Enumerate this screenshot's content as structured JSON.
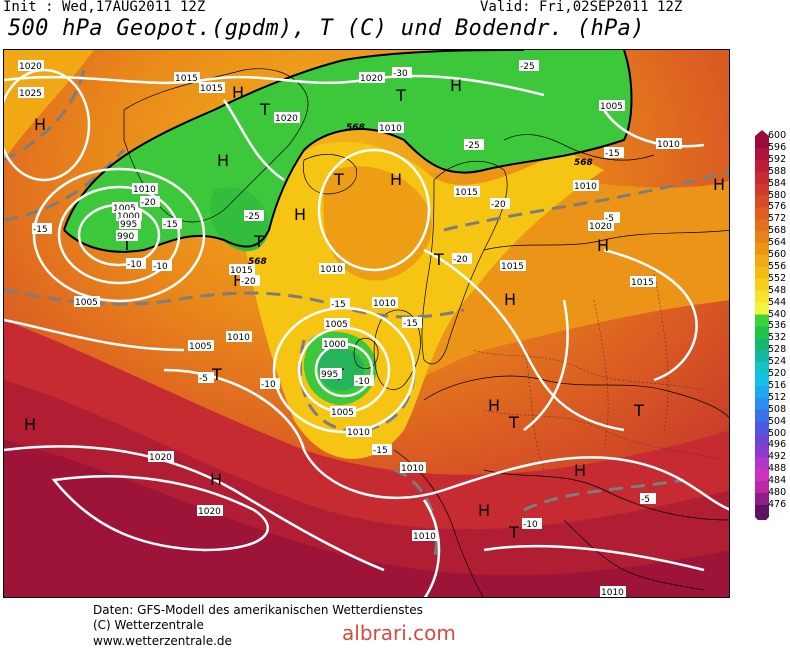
{
  "header": {
    "init": "Init : Wed,17AUG2011 12Z",
    "valid": "Valid: Fri,02SEP2011 12Z",
    "title": "500 hPa Geopot.(gpdm), T (C) und Bodendr. (hPa)"
  },
  "map": {
    "pressure_centers": [
      {
        "type": "H",
        "lon_lat": "Atlantic W"
      },
      {
        "type": "H",
        "lon_lat": "Greenland"
      },
      {
        "type": "T",
        "lon_lat": "Iceland"
      },
      {
        "type": "T",
        "lon_lat": "N Scandinavia"
      },
      {
        "type": "H",
        "lon_lat": "Norwegian Sea"
      },
      {
        "type": "T",
        "lon_lat": "W Atlantic low"
      },
      {
        "type": "T",
        "lon_lat": "British Isles low"
      },
      {
        "type": "H",
        "lon_lat": "Azores"
      }
    ],
    "isobar_labels": [
      "1020",
      "1025",
      "1015",
      "1015",
      "1020",
      "1010",
      "1005",
      "1000",
      "995",
      "990",
      "1005",
      "1010",
      "1015",
      "1020",
      "1005",
      "1010",
      "1010",
      "1005",
      "1000",
      "995",
      "1005",
      "1010",
      "1010",
      "1015",
      "1010",
      "1015",
      "1020",
      "1010",
      "1010",
      "1020",
      "1005",
      "1010",
      "1015",
      "1020",
      "1010"
    ],
    "temp_labels": [
      "-30",
      "-25",
      "-20",
      "-25",
      "-20",
      "-15",
      "-10",
      "-15",
      "-20",
      "-25",
      "-15",
      "-5",
      "-10",
      "-15",
      "-20",
      "-15",
      "-10",
      "-5",
      "-15",
      "-10",
      "-5",
      "-10"
    ],
    "geopotential_labels": [
      "568",
      "568",
      "568",
      "568"
    ]
  },
  "colorbar": {
    "labels": [
      "600",
      "596",
      "592",
      "588",
      "584",
      "580",
      "576",
      "572",
      "568",
      "564",
      "560",
      "556",
      "552",
      "548",
      "544",
      "540",
      "536",
      "532",
      "528",
      "524",
      "520",
      "516",
      "512",
      "508",
      "504",
      "500",
      "496",
      "492",
      "488",
      "484",
      "480",
      "476"
    ],
    "colors": [
      "#9a0b3a",
      "#b0123a",
      "#bf1d36",
      "#c92a31",
      "#d1392b",
      "#d84b25",
      "#de5d1f",
      "#e3701b",
      "#e98317",
      "#ee9614",
      "#f2a912",
      "#f6bc14",
      "#f9cf1d",
      "#f8e22c",
      "#eef73a",
      "#3ed23a",
      "#1fc44a",
      "#18b66d",
      "#14b8a0",
      "#14c3c8",
      "#12c0e8",
      "#1ea8f0",
      "#2b8ef0",
      "#3a72ea",
      "#4f58e2",
      "#6a46d8",
      "#8d3ad0",
      "#b037c8",
      "#ce33c0",
      "#bb27a5",
      "#8f1f86",
      "#5e1466"
    ]
  },
  "footer": {
    "line1": "Daten: GFS-Modell des amerikanischen Wetterdienstes",
    "line2": "(C) Wetterzentrale",
    "line3": "www.wetterzentrale.de"
  },
  "watermark": "albrari.com"
}
